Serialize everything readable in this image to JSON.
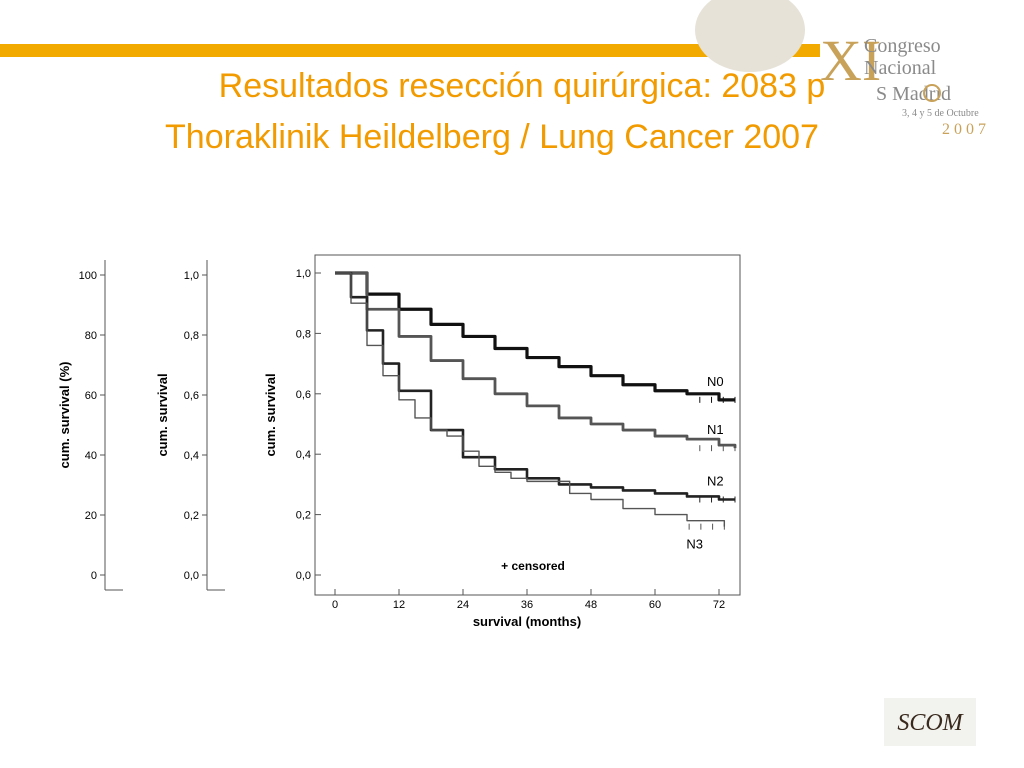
{
  "slide": {
    "title_line1": "Resultados resección quirúrgica: 2083 p",
    "title_line2": "Thoraklinik Heildelberg / Lung Cancer 2007",
    "accent_color": "#f29b00"
  },
  "logo": {
    "numeral": "XI",
    "line1": "Congreso",
    "line2": "Nacional",
    "line3": "S    Madrid",
    "dates": "3, 4 y 5 de Octubre",
    "year": "2 0 0 7",
    "color": "#c9a25a",
    "badge_text": "SCOM"
  },
  "chart_data": {
    "type": "line",
    "xlabel": "survival (months)",
    "ylabel": "cum. survival",
    "xlim": [
      0,
      75
    ],
    "ylim": [
      0,
      1.0
    ],
    "xticks": [
      "0",
      "12",
      "24",
      "36",
      "48",
      "60",
      "72"
    ],
    "yticks": [
      "0,0",
      "0,2",
      "0,4",
      "0,6",
      "0,8",
      "1,0"
    ],
    "annotation": "+ censored",
    "series": [
      {
        "name": "N0",
        "x": [
          0,
          6,
          12,
          18,
          24,
          30,
          36,
          42,
          48,
          54,
          60,
          66,
          72,
          75
        ],
        "y": [
          1.0,
          0.93,
          0.88,
          0.83,
          0.79,
          0.75,
          0.72,
          0.69,
          0.66,
          0.63,
          0.61,
          0.6,
          0.58,
          0.58
        ]
      },
      {
        "name": "N1",
        "x": [
          0,
          6,
          12,
          18,
          24,
          30,
          36,
          42,
          48,
          54,
          60,
          66,
          72,
          75
        ],
        "y": [
          1.0,
          0.88,
          0.79,
          0.71,
          0.65,
          0.6,
          0.56,
          0.52,
          0.5,
          0.48,
          0.46,
          0.45,
          0.43,
          0.42
        ]
      },
      {
        "name": "N2",
        "x": [
          0,
          3,
          6,
          9,
          12,
          18,
          24,
          30,
          36,
          42,
          48,
          54,
          60,
          66,
          72,
          75
        ],
        "y": [
          1.0,
          0.92,
          0.81,
          0.7,
          0.61,
          0.48,
          0.39,
          0.35,
          0.32,
          0.3,
          0.29,
          0.28,
          0.27,
          0.26,
          0.25,
          0.25
        ]
      },
      {
        "name": "N3",
        "x": [
          0,
          3,
          6,
          9,
          12,
          15,
          18,
          21,
          24,
          27,
          30,
          33,
          36,
          40,
          44,
          48,
          54,
          60,
          66,
          72,
          73
        ],
        "y": [
          1.0,
          0.9,
          0.76,
          0.66,
          0.58,
          0.52,
          0.48,
          0.46,
          0.41,
          0.36,
          0.34,
          0.32,
          0.31,
          0.31,
          0.27,
          0.25,
          0.22,
          0.2,
          0.18,
          0.18,
          0.16
        ]
      }
    ],
    "underlay_axes": [
      {
        "ylabel": "cum. survival (%)",
        "yticks": [
          "0",
          "20",
          "40",
          "60",
          "80",
          "100"
        ]
      },
      {
        "ylabel": "cum. survival",
        "yticks": [
          "0,0",
          "0,2",
          "0,4",
          "0,6",
          "0,8",
          "1,0"
        ]
      }
    ]
  }
}
